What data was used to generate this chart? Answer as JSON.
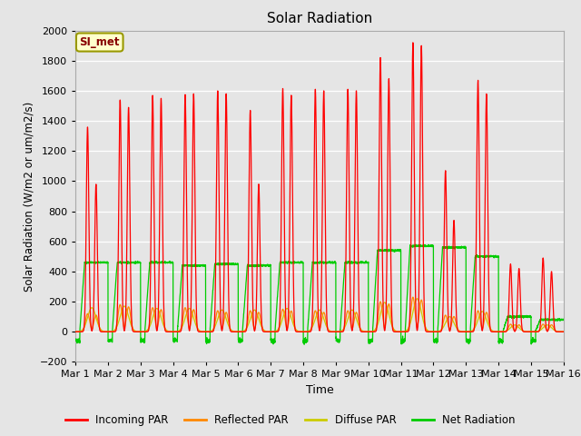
{
  "title": "Solar Radiation",
  "xlabel": "Time",
  "ylabel": "Solar Radiation (W/m2 or um/m2/s)",
  "ylim": [
    -200,
    2000
  ],
  "yticks": [
    -200,
    0,
    200,
    400,
    600,
    800,
    1000,
    1200,
    1400,
    1600,
    1800,
    2000
  ],
  "bg_color": "#e5e5e5",
  "legend_items": [
    "Incoming PAR",
    "Reflected PAR",
    "Diffuse PAR",
    "Net Radiation"
  ],
  "legend_colors": [
    "#ff0000",
    "#ff8800",
    "#cccc00",
    "#00cc00"
  ],
  "annotation_text": "SI_met",
  "annotation_bg": "#ffffcc",
  "annotation_border": "#999900",
  "annotation_text_color": "#880000",
  "n_days": 15,
  "x_tick_labels": [
    "Mar 1",
    "Mar 2",
    "Mar 3",
    "Mar 4",
    "Mar 5",
    "Mar 6",
    "Mar 7",
    "Mar 8",
    "Mar 9",
    "Mar 10",
    "Mar 11",
    "Mar 12",
    "Mar 13",
    "Mar 14",
    "Mar 15",
    "Mar 16"
  ],
  "incoming_peak1": [
    1360,
    1540,
    1570,
    1575,
    1600,
    1470,
    1615,
    1610,
    1610,
    1820,
    1920,
    1070,
    1670,
    450,
    490
  ],
  "incoming_peak2": [
    980,
    1490,
    1550,
    1580,
    1580,
    980,
    1570,
    1600,
    1600,
    1680,
    1900,
    740,
    1580,
    420,
    400
  ],
  "net_peaks": [
    460,
    460,
    460,
    440,
    450,
    440,
    460,
    460,
    460,
    540,
    570,
    560,
    500,
    100,
    80
  ],
  "reflected_peaks": [
    120,
    180,
    160,
    160,
    140,
    140,
    150,
    140,
    140,
    200,
    230,
    110,
    140,
    50,
    50
  ],
  "diffuse_peaks": [
    160,
    170,
    155,
    155,
    145,
    145,
    155,
    145,
    145,
    195,
    220,
    100,
    135,
    45,
    45
  ],
  "night_net": -60
}
